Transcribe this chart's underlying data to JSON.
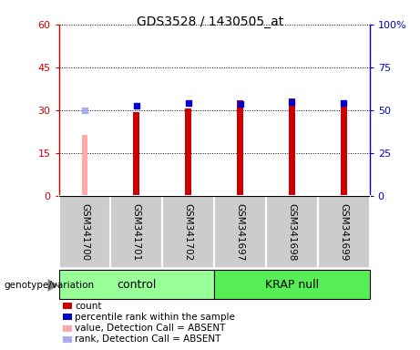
{
  "title": "GDS3528 / 1430505_at",
  "samples": [
    "GSM341700",
    "GSM341701",
    "GSM341702",
    "GSM341697",
    "GSM341698",
    "GSM341699"
  ],
  "count_values": [
    null,
    29.5,
    30.5,
    33.5,
    34.0,
    33.0
  ],
  "count_absent_values": [
    21.5,
    null,
    null,
    null,
    null,
    null
  ],
  "percentile_values": [
    null,
    52.5,
    54.0,
    53.5,
    55.0,
    54.0
  ],
  "percentile_absent_values": [
    50.0,
    null,
    null,
    null,
    null,
    null
  ],
  "ylim_left": [
    0,
    60
  ],
  "ylim_right": [
    0,
    100
  ],
  "yticks_left": [
    0,
    15,
    30,
    45,
    60
  ],
  "ytick_labels_left": [
    "0",
    "15",
    "30",
    "45",
    "60"
  ],
  "yticks_right": [
    0,
    25,
    50,
    75,
    100
  ],
  "ytick_labels_right": [
    "0",
    "25",
    "50",
    "75",
    "100%"
  ],
  "bar_width": 0.12,
  "count_color": "#cc0000",
  "count_absent_color": "#ffaaaa",
  "percentile_color": "#0000cc",
  "percentile_absent_color": "#aaaaee",
  "control_bg": "#99ff99",
  "krap_bg": "#55ee55",
  "sample_bg": "#cccccc",
  "legend_items": [
    {
      "label": "count",
      "color": "#cc0000"
    },
    {
      "label": "percentile rank within the sample",
      "color": "#0000cc"
    },
    {
      "label": "value, Detection Call = ABSENT",
      "color": "#ffaaaa"
    },
    {
      "label": "rank, Detection Call = ABSENT",
      "color": "#aaaaee"
    }
  ]
}
